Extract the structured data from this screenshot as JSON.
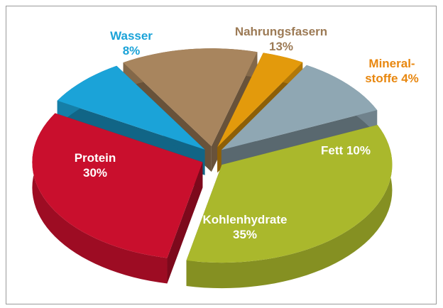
{
  "chart_data": {
    "type": "pie3d",
    "categories": [
      "Wasser",
      "Nahrungsfasern",
      "Mineral-stoffe",
      "Fett",
      "Kohlenhydrate",
      "Protein"
    ],
    "values": [
      8,
      13,
      4,
      10,
      35,
      30
    ],
    "value_labels": [
      "8%",
      "13%",
      "4%",
      "10%",
      "35%",
      "30%"
    ],
    "colors": [
      "#1ba3d8",
      "#a8855e",
      "#e39a0c",
      "#8fa7b3",
      "#aab82c",
      "#c90f2d"
    ],
    "label_colors": [
      "#1ba3d8",
      "#9c7a55",
      "#e8870f",
      "#ffffff",
      "#ffffff",
      "#ffffff"
    ]
  }
}
